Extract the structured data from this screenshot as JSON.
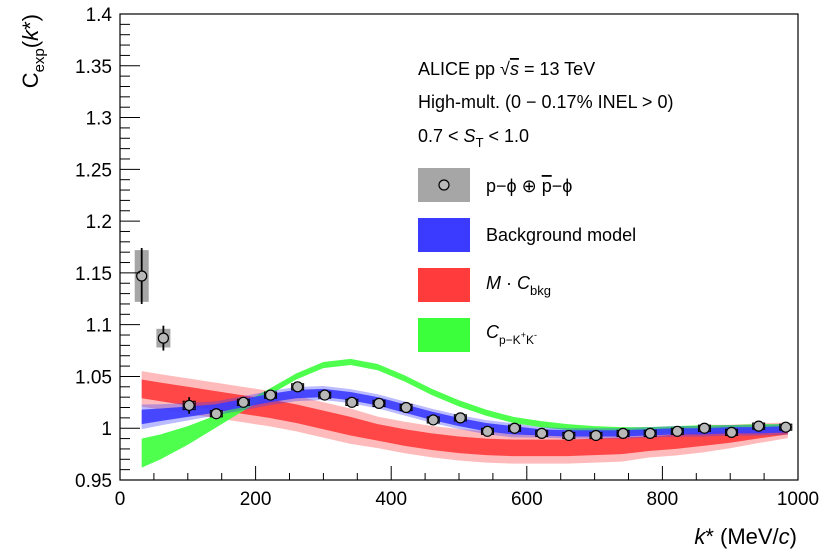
{
  "chart_data": {
    "type": "scatter",
    "xlabel": "k* (MeV/c)",
    "ylabel": "C_exp(k*)",
    "xlim": [
      0,
      1000
    ],
    "ylim": [
      0.95,
      1.4
    ],
    "x_ticks": [
      0,
      200,
      400,
      600,
      800,
      1000
    ],
    "x_tick_labels": [
      "0",
      "200",
      "400",
      "600",
      "800",
      "1000"
    ],
    "y_ticks": [
      0.95,
      1.0,
      1.05,
      1.1,
      1.15,
      1.2,
      1.25,
      1.3,
      1.35,
      1.4
    ],
    "y_tick_labels": [
      "0.95",
      "1",
      "1.05",
      "1.1",
      "1.15",
      "1.2",
      "1.25",
      "1.3",
      "1.35",
      "1.4"
    ],
    "grid": false,
    "legend_position": "right",
    "annotations": {
      "line1_prefix": "ALICE pp ",
      "line1_sqrt": "√",
      "line1_s": "s",
      "line1_suffix": " = 13 TeV",
      "line2": "High-mult. (0 − 0.17% INEL > 0)",
      "line3_prefix": "0.7 < ",
      "line3_S": "S",
      "line3_sub": "T",
      "line3_suffix": " < 1.0"
    },
    "legend": {
      "data_a": "p−ϕ ⊕ ",
      "data_p": "p",
      "data_b": "−ϕ",
      "background": "Background model",
      "m_times": "M · ",
      "c": "C",
      "bkg_sub": "bkg",
      "pkk_sub_a": "p−K",
      "pkk_sup_plus": "+",
      "pkk_mid": "K",
      "pkk_sup_minus": "-"
    },
    "colors": {
      "background_model": "#3b3bff",
      "m_cbkg": "#ff3b3b",
      "c_pkk": "#3bff3b",
      "syst": "#a6a6a6"
    },
    "series": [
      {
        "name": "p−ϕ ⊕ p̄−ϕ",
        "kind": "data",
        "points": [
          {
            "x": 32,
            "y": 1.147,
            "yerr": 0.027,
            "syst": 0.025
          },
          {
            "x": 64,
            "y": 1.087,
            "yerr": 0.012,
            "syst": 0.009
          },
          {
            "x": 102,
            "y": 1.022,
            "yerr": 0.008,
            "syst": 0.004
          },
          {
            "x": 142,
            "y": 1.014,
            "yerr": 0.005,
            "syst": 0.003
          },
          {
            "x": 182,
            "y": 1.025,
            "yerr": 0.004,
            "syst": 0.003
          },
          {
            "x": 222,
            "y": 1.032,
            "yerr": 0.003,
            "syst": 0.003
          },
          {
            "x": 262,
            "y": 1.04,
            "yerr": 0.003,
            "syst": 0.003
          },
          {
            "x": 302,
            "y": 1.032,
            "yerr": 0.003,
            "syst": 0.003
          },
          {
            "x": 342,
            "y": 1.025,
            "yerr": 0.003,
            "syst": 0.003
          },
          {
            "x": 382,
            "y": 1.024,
            "yerr": 0.003,
            "syst": 0.003
          },
          {
            "x": 422,
            "y": 1.02,
            "yerr": 0.003,
            "syst": 0.003
          },
          {
            "x": 462,
            "y": 1.008,
            "yerr": 0.003,
            "syst": 0.003
          },
          {
            "x": 502,
            "y": 1.01,
            "yerr": 0.003,
            "syst": 0.003
          },
          {
            "x": 542,
            "y": 0.997,
            "yerr": 0.003,
            "syst": 0.003
          },
          {
            "x": 582,
            "y": 1.0,
            "yerr": 0.003,
            "syst": 0.003
          },
          {
            "x": 622,
            "y": 0.995,
            "yerr": 0.003,
            "syst": 0.003
          },
          {
            "x": 662,
            "y": 0.993,
            "yerr": 0.003,
            "syst": 0.003
          },
          {
            "x": 702,
            "y": 0.993,
            "yerr": 0.003,
            "syst": 0.003
          },
          {
            "x": 742,
            "y": 0.995,
            "yerr": 0.003,
            "syst": 0.003
          },
          {
            "x": 782,
            "y": 0.995,
            "yerr": 0.003,
            "syst": 0.003
          },
          {
            "x": 822,
            "y": 0.997,
            "yerr": 0.003,
            "syst": 0.003
          },
          {
            "x": 862,
            "y": 1.0,
            "yerr": 0.003,
            "syst": 0.003
          },
          {
            "x": 902,
            "y": 0.996,
            "yerr": 0.003,
            "syst": 0.003
          },
          {
            "x": 942,
            "y": 1.002,
            "yerr": 0.003,
            "syst": 0.003
          },
          {
            "x": 982,
            "y": 1.001,
            "yerr": 0.003,
            "syst": 0.003
          }
        ]
      },
      {
        "name": "Background model",
        "kind": "band",
        "x": [
          32,
          60,
          100,
          140,
          180,
          220,
          260,
          300,
          340,
          380,
          420,
          460,
          500,
          540,
          580,
          620,
          660,
          700,
          740,
          780,
          820,
          860,
          900,
          940,
          985
        ],
        "y": [
          1.011,
          1.013,
          1.016,
          1.019,
          1.024,
          1.029,
          1.033,
          1.034,
          1.031,
          1.026,
          1.019,
          1.012,
          1.006,
          1.001,
          0.998,
          0.996,
          0.995,
          0.995,
          0.995,
          0.996,
          0.997,
          0.997,
          0.998,
          0.998,
          0.999
        ],
        "width": [
          0.007,
          0.006,
          0.005,
          0.004,
          0.004,
          0.004,
          0.004,
          0.004,
          0.004,
          0.004,
          0.004,
          0.004,
          0.004,
          0.004,
          0.004,
          0.003,
          0.003,
          0.003,
          0.003,
          0.003,
          0.003,
          0.003,
          0.003,
          0.003,
          0.003
        ]
      },
      {
        "name": "M · C_bkg",
        "kind": "band",
        "x": [
          32,
          60,
          100,
          140,
          180,
          220,
          260,
          300,
          340,
          380,
          420,
          460,
          500,
          540,
          580,
          620,
          660,
          700,
          740,
          780,
          820,
          860,
          900,
          940,
          985
        ],
        "y": [
          1.038,
          1.035,
          1.031,
          1.027,
          1.023,
          1.019,
          1.014,
          1.008,
          1.002,
          0.996,
          0.991,
          0.987,
          0.984,
          0.982,
          0.981,
          0.981,
          0.981,
          0.982,
          0.983,
          0.985,
          0.987,
          0.99,
          0.992,
          0.995,
          0.998
        ],
        "width": [
          0.009,
          0.009,
          0.009,
          0.009,
          0.009,
          0.009,
          0.009,
          0.009,
          0.009,
          0.008,
          0.008,
          0.008,
          0.008,
          0.008,
          0.008,
          0.008,
          0.008,
          0.008,
          0.008,
          0.007,
          0.007,
          0.007,
          0.006,
          0.005,
          0.004
        ]
      },
      {
        "name": "C_p−K+K-",
        "kind": "band",
        "x": [
          32,
          60,
          100,
          140,
          180,
          220,
          260,
          300,
          340,
          380,
          420,
          460,
          500,
          540,
          580,
          620,
          660,
          700,
          740,
          780,
          820,
          860,
          900,
          940,
          985
        ],
        "y": [
          0.976,
          0.982,
          0.993,
          1.006,
          1.02,
          1.035,
          1.05,
          1.061,
          1.064,
          1.059,
          1.048,
          1.035,
          1.024,
          1.015,
          1.008,
          1.004,
          1.001,
          0.999,
          0.998,
          0.998,
          0.999,
          1.0,
          1.0,
          1.001,
          1.001
        ],
        "width": [
          0.014,
          0.012,
          0.009,
          0.006,
          0.004,
          0.003,
          0.003,
          0.003,
          0.003,
          0.003,
          0.003,
          0.003,
          0.003,
          0.003,
          0.003,
          0.003,
          0.003,
          0.003,
          0.003,
          0.003,
          0.003,
          0.003,
          0.003,
          0.003,
          0.003
        ]
      }
    ]
  }
}
